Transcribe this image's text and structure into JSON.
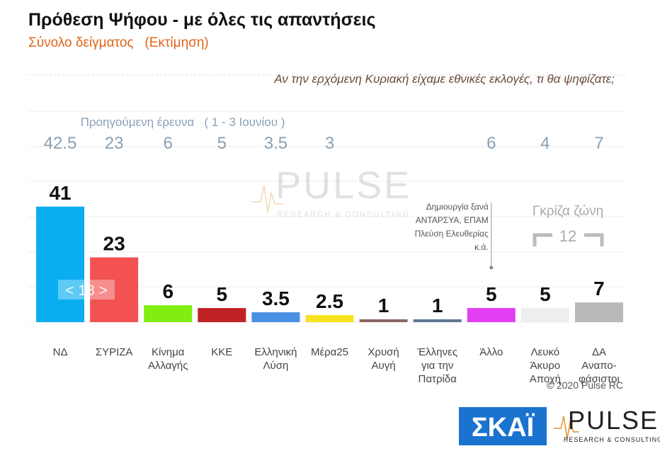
{
  "title": "Πρόθεση Ψήφου - με όλες τις απαντήσεις",
  "subtitle": "Σύνολο δείγματος   (Εκτίμηση)",
  "question": "Αν την ερχόμενη Κυριακή είχαμε εθνικές εκλογές, τι θα ψηφίζατε;",
  "watermark": {
    "name": "PULSE",
    "tagline": "RESEARCH & CONSULTING"
  },
  "chart_data": {
    "type": "bar",
    "categories": [
      [
        "ΝΔ"
      ],
      [
        "ΣΥΡΙΖΑ"
      ],
      [
        "Κίνημα",
        "Αλλαγής"
      ],
      [
        "ΚΚΕ"
      ],
      [
        "Ελληνική",
        "Λύση"
      ],
      [
        "Μέρα25"
      ],
      [
        "Χρυσή",
        "Αυγή"
      ],
      [
        "Έλληνες",
        "για την",
        "Πατρίδα"
      ],
      [
        "Άλλο"
      ],
      [
        "Λευκό",
        "Άκυρο",
        "Αποχή"
      ],
      [
        "ΔΑ",
        "Αναπο-",
        "φάσιστοι"
      ]
    ],
    "values": [
      41,
      23,
      6,
      5,
      3.5,
      2.5,
      1,
      1,
      5,
      5,
      7
    ],
    "colors": [
      "#0aaef0",
      "#f25252",
      "#80ee10",
      "#c02226",
      "#4a90e2",
      "#f7e21e",
      "#8a6565",
      "#5d7592",
      "#e23ef2",
      "#eeeeee",
      "#b9b9b9"
    ],
    "previous": {
      "label": "Προηγούμενη έρευνα   ( 1 - 3 Ιουνίου )",
      "values": [
        42.5,
        23,
        6,
        5,
        3.5,
        3,
        null,
        null,
        6,
        4,
        7
      ]
    },
    "annotation": [
      "Δημιουργία ξανά",
      "ΑΝΤΑΡΣΥΑ, ΕΠΑΜ",
      "Πλεύση Ελευθερίας",
      "κ.ά."
    ],
    "grey_zone": {
      "label": "Γκρίζα ζώνη",
      "value": 12
    },
    "bracket_label": "< 18 >",
    "grid": true
  },
  "copyright": "© 2020 Pulse RC",
  "logos": {
    "skai": "ΣΚΑΪ",
    "pulse": "PULSE",
    "pulse_tagline": "RESEARCH & CONSULTING"
  }
}
